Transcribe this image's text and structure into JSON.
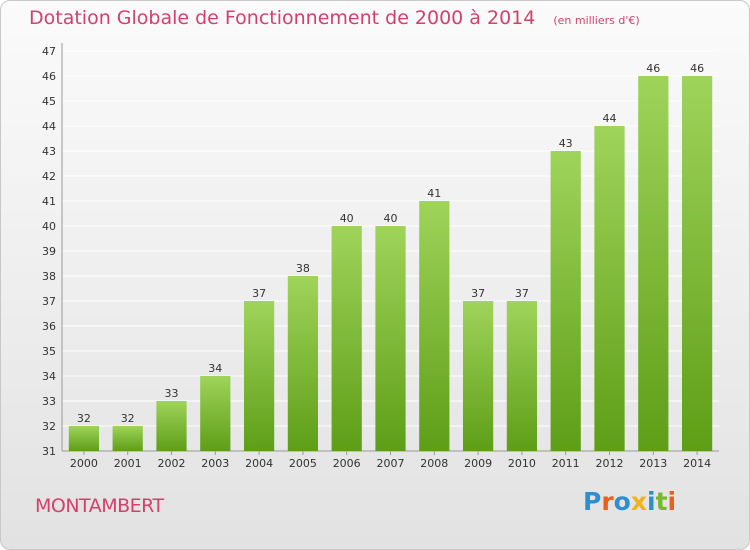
{
  "title": "Dotation Globale de Fonctionnement de 2000 à 2014",
  "unit_note": "(en milliers d'€)",
  "commune": "MONTAMBERT",
  "brand": "Proxiti",
  "colors": {
    "title": "#d4406c",
    "bar_light": "#9fd45a",
    "bar_dark": "#5e9e17",
    "grid": "#ffffff",
    "brand_letters": [
      "#2e8fd0",
      "#e8601c",
      "#2e8fd0",
      "#f2b31a",
      "#2e8fd0",
      "#78b82a",
      "#e8601c"
    ]
  },
  "chart_data": {
    "type": "bar",
    "title": "Dotation Globale de Fonctionnement de 2000 à 2014",
    "subtitle": "(en milliers d'€)",
    "xlabel": "",
    "ylabel": "",
    "categories": [
      "2000",
      "2001",
      "2002",
      "2003",
      "2004",
      "2005",
      "2006",
      "2007",
      "2008",
      "2009",
      "2010",
      "2011",
      "2012",
      "2013",
      "2014"
    ],
    "values": [
      32,
      32,
      33,
      34,
      37,
      38,
      40,
      40,
      41,
      37,
      37,
      43,
      44,
      46,
      46
    ],
    "ylim": [
      31,
      47
    ],
    "yticks": [
      31,
      32,
      33,
      34,
      35,
      36,
      37,
      38,
      39,
      40,
      41,
      42,
      43,
      44,
      45,
      46,
      47
    ],
    "grid": true,
    "data_labels": true
  }
}
